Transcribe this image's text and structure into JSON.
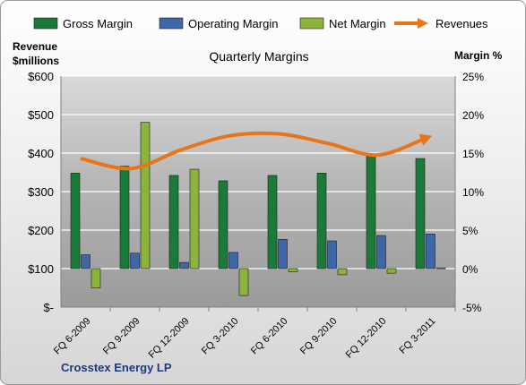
{
  "chart_data": {
    "type": "bar",
    "title": "Quarterly Margins",
    "company": "Crosstex Energy LP",
    "left_axis_label": [
      "Revenue",
      "$millions"
    ],
    "right_axis_label": "Margin %",
    "categories": [
      "FQ 6-2009",
      "FQ 9-2009",
      "FQ 12-2009",
      "FQ 3-2010",
      "FQ 6-2010",
      "FQ 9-2010",
      "FQ 12-2010",
      "FQ 3-2011"
    ],
    "left_ticks": [
      "$-",
      "$100",
      "$200",
      "$300",
      "$400",
      "$500",
      "$600"
    ],
    "right_ticks": [
      "-5%",
      "0%",
      "5%",
      "10%",
      "15%",
      "20%",
      "25%"
    ],
    "left_ylim": [
      0,
      600
    ],
    "right_ylim": [
      -5,
      25
    ],
    "legend_position": "top",
    "series": [
      {
        "name": "Gross Margin",
        "type": "bar",
        "axis": "right",
        "color": "#1b7a3a",
        "values": [
          12.4,
          13.3,
          12.1,
          11.4,
          12.1,
          12.4,
          14.6,
          14.3
        ]
      },
      {
        "name": "Operating Margin",
        "type": "bar",
        "axis": "right",
        "color": "#3f67a8",
        "values": [
          1.8,
          2.0,
          0.8,
          2.1,
          3.8,
          3.6,
          4.3,
          4.5
        ]
      },
      {
        "name": "Net Margin",
        "type": "bar",
        "axis": "right",
        "color": "#8cb33c",
        "values": [
          -2.5,
          19.0,
          12.9,
          -3.5,
          -0.4,
          -0.8,
          -0.6,
          0.1
        ]
      },
      {
        "name": "Revenues",
        "type": "line",
        "axis": "left",
        "color": "#e8751a",
        "values": [
          385,
          360,
          408,
          445,
          450,
          425,
          395,
          440
        ]
      }
    ]
  }
}
